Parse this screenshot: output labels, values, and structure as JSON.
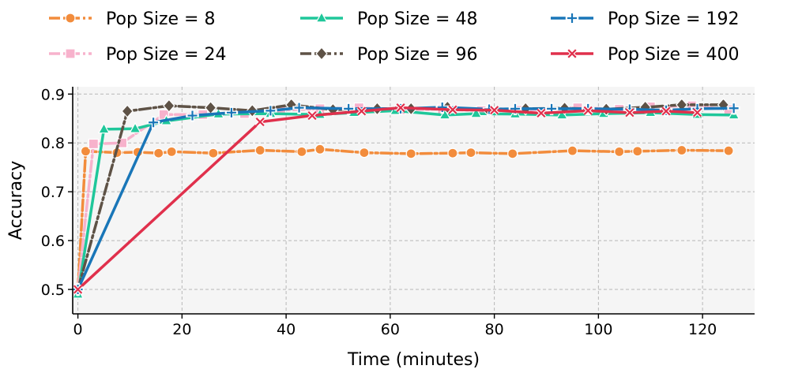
{
  "chart_data": {
    "type": "line",
    "xlabel": "Time (minutes)",
    "ylabel": "Accuracy",
    "xlim": [
      -1,
      130
    ],
    "ylim": [
      0.45,
      0.915
    ],
    "xticks": [
      0,
      20,
      40,
      60,
      80,
      100,
      120
    ],
    "yticks": [
      0.5,
      0.6,
      0.7,
      0.8,
      0.9
    ],
    "xtick_labels": [
      "0",
      "20",
      "40",
      "60",
      "80",
      "100",
      "120"
    ],
    "ytick_labels": [
      "0.5",
      "0.6",
      "0.7",
      "0.8",
      "0.9"
    ],
    "grid": true,
    "legend_position": "top",
    "series": [
      {
        "name": "Pop Size = 8",
        "color": "#F28C3C",
        "marker": "circle",
        "dash": "dashdot",
        "x": [
          0,
          1.5,
          7.5,
          11.5,
          15.5,
          18,
          26,
          35,
          43,
          46.5,
          55,
          64,
          72,
          75.5,
          83.5,
          95,
          104,
          107.5,
          116,
          125
        ],
        "y": [
          0.5,
          0.783,
          0.78,
          0.781,
          0.779,
          0.782,
          0.779,
          0.785,
          0.782,
          0.787,
          0.78,
          0.778,
          0.779,
          0.78,
          0.778,
          0.784,
          0.782,
          0.783,
          0.785,
          0.784
        ]
      },
      {
        "name": "Pop Size = 24",
        "color": "#F7B2CC",
        "marker": "square",
        "dash": "dashdot",
        "x": [
          0,
          3,
          8.5,
          16.5,
          24,
          32,
          39,
          46.5,
          54,
          62,
          70,
          77.5,
          85,
          96,
          104,
          110,
          118,
          125
        ],
        "y": [
          0.5,
          0.798,
          0.8,
          0.858,
          0.858,
          0.86,
          0.867,
          0.87,
          0.872,
          0.868,
          0.869,
          0.866,
          0.867,
          0.872,
          0.869,
          0.874,
          0.876,
          0.868
        ]
      },
      {
        "name": "Pop Size = 48",
        "color": "#1FC79A",
        "marker": "triangle",
        "dash": "solid",
        "x": [
          0,
          5,
          11,
          17,
          27,
          37,
          46.5,
          53,
          61,
          70.5,
          76.5,
          84,
          93,
          101,
          110,
          119,
          126
        ],
        "y": [
          0.49,
          0.828,
          0.829,
          0.845,
          0.859,
          0.86,
          0.858,
          0.862,
          0.866,
          0.857,
          0.86,
          0.859,
          0.857,
          0.86,
          0.862,
          0.858,
          0.857
        ]
      },
      {
        "name": "Pop Size = 96",
        "color": "#5E5246",
        "marker": "diamond",
        "dash": "dashdot",
        "x": [
          0,
          9.5,
          17.5,
          25.5,
          33.5,
          41,
          49,
          57.5,
          64,
          71,
          79,
          86,
          93.5,
          101.5,
          109,
          116,
          124
        ],
        "y": [
          0.5,
          0.865,
          0.876,
          0.872,
          0.866,
          0.878,
          0.868,
          0.87,
          0.87,
          0.873,
          0.866,
          0.87,
          0.871,
          0.869,
          0.873,
          0.878,
          0.878
        ]
      },
      {
        "name": "Pop Size = 192",
        "color": "#1976B8",
        "marker": "plus",
        "dash": "solid",
        "x": [
          0,
          14.5,
          22,
          29.5,
          37,
          42.5,
          52,
          62,
          70,
          79,
          84,
          91,
          98,
          106,
          113,
          119,
          126
        ],
        "y": [
          0.5,
          0.842,
          0.856,
          0.862,
          0.866,
          0.872,
          0.87,
          0.87,
          0.873,
          0.869,
          0.87,
          0.87,
          0.87,
          0.869,
          0.867,
          0.87,
          0.871
        ]
      },
      {
        "name": "Pop Size = 400",
        "color": "#E0304C",
        "marker": "x",
        "dash": "solid",
        "x": [
          0,
          35,
          45,
          54.5,
          62,
          72,
          80,
          89,
          98,
          106,
          113,
          119
        ],
        "y": [
          0.5,
          0.843,
          0.856,
          0.865,
          0.872,
          0.868,
          0.867,
          0.861,
          0.866,
          0.862,
          0.865,
          0.862
        ]
      }
    ]
  }
}
